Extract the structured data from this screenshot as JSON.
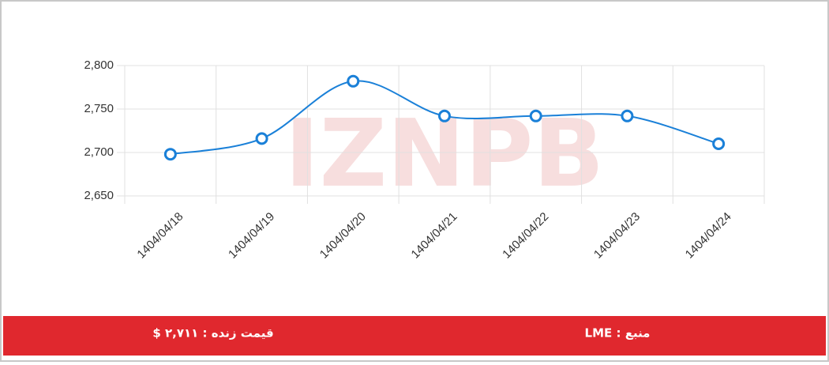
{
  "chart_data": {
    "type": "line",
    "watermark": "IZNPB",
    "categories": [
      "1404/04/18",
      "1404/04/19",
      "1404/04/20",
      "1404/04/21",
      "1404/04/22",
      "1404/04/23",
      "1404/04/24"
    ],
    "values": [
      2698,
      2716,
      2782,
      2742,
      2742,
      2742,
      2710
    ],
    "color": "#1a80d8",
    "ylim": [
      2650,
      2800
    ],
    "yticks": [
      {
        "value": 2650,
        "label": "2,650"
      },
      {
        "value": 2700,
        "label": "2,700"
      },
      {
        "value": 2750,
        "label": "2,750"
      },
      {
        "value": 2800,
        "label": "2,800"
      }
    ],
    "grid": true
  },
  "footer": {
    "live_price": "قیمت زنده : ۲,۷۱۱ $",
    "source": "منبع : LME"
  }
}
